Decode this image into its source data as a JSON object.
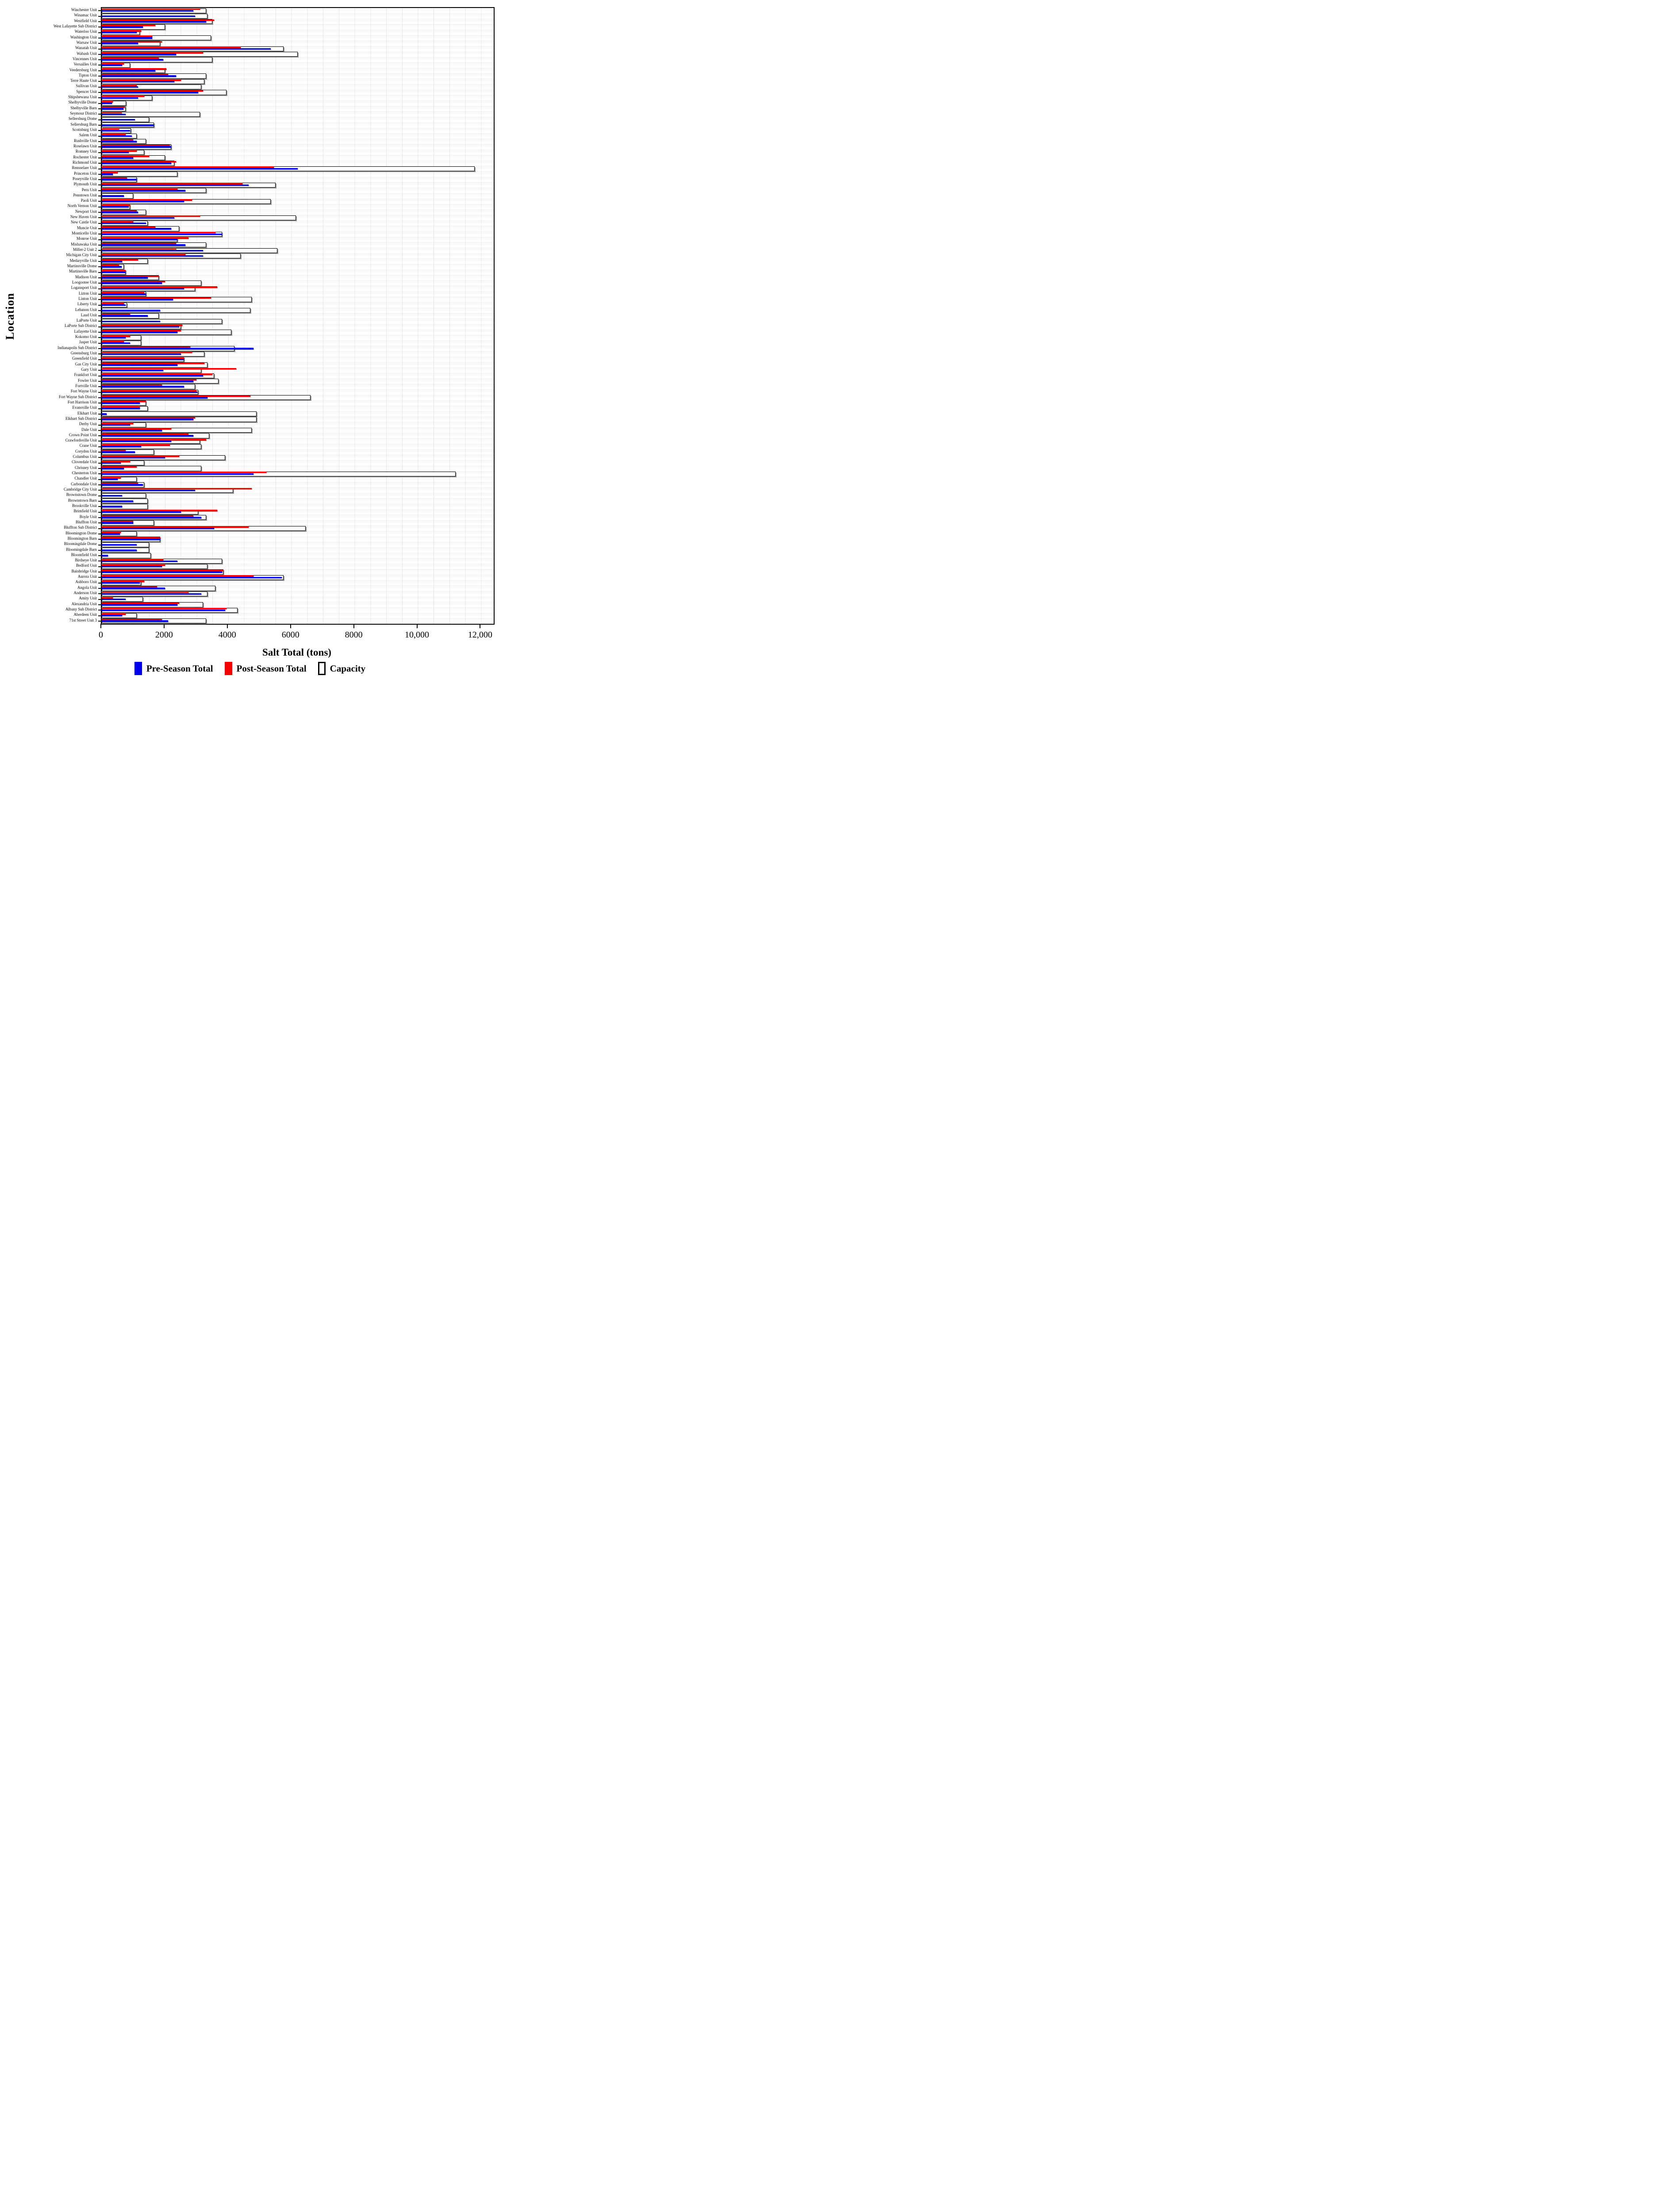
{
  "chart_data": {
    "type": "bar",
    "orientation": "horizontal",
    "title": "",
    "xlabel": "Salt Total (tons)",
    "ylabel": "Location",
    "xlim": [
      0,
      12400
    ],
    "grid": "minor vertical gridlines every 500 tons; legend at bottom",
    "xticks": {
      "values": [
        0,
        2000,
        4000,
        6000,
        8000,
        10000,
        12000
      ],
      "labels": [
        "0",
        "2000",
        "4000",
        "6000",
        "8000",
        "10,000",
        "12,000"
      ]
    },
    "legend": [
      {
        "name": "Pre-Season Total",
        "color": "#0000f0"
      },
      {
        "name": "Post-Season Total",
        "color": "#f80000"
      },
      {
        "name": "Capacity",
        "color": "#ffffff",
        "border": "#000000"
      }
    ],
    "categories": [
      "Winchester Unit",
      "Winamac Unit",
      "Westfield Unit",
      "West Lafayette Sub District",
      "Waterloo Unit",
      "Washington Unit",
      "Warsaw Unit",
      "Wanatah Unit",
      "Wabash Unit",
      "Vincennes Unit",
      "Versailles Unit",
      "Veedersburg Unit",
      "Tipton Unit",
      "Terre Haute Unit",
      "Sullivan Unit",
      "Spencer Unit",
      "Shipshewana Unit",
      "Shelbyville Dome",
      "Shelbyville Barn",
      "Seymour District",
      "Sellersburg Dome",
      "Sellersburg Barn",
      "Scottsburg Unit",
      "Salem Unit",
      "Rushville Unit",
      "Roselawn Unit",
      "Romney Unit",
      "Rochester Unit",
      "Richmond Unit",
      "Rensselaer Unit",
      "Princeton Unit",
      "Poseyville Unit",
      "Plymouth Unit",
      "Peru Unit",
      "Penntown Unit",
      "Paoli Unit",
      "North Vernon Unit",
      "Newport Unit",
      "New Haven Unit",
      "New Castle Unit",
      "Muncie Unit",
      "Monticello Unit",
      "Monroe Unit",
      "Mishawaka Unit",
      "Miller-2 Unit 2",
      "Michigan City Unit",
      "Medaryville Unit",
      "Martinsville Dome",
      "Martinsville Barn",
      "Madison Unit",
      "Loogootee Unit",
      "Logansport Unit",
      "Lizton Unit",
      "Linton Unit",
      "Liberty Unit",
      "Lebanon Unit",
      "Laud Unit",
      "LaPorte Unit",
      "LaPorte Sub District",
      "Lafayette Unit",
      "Kokomo Unit",
      "Jasper Unit",
      "Indianapolis Sub District",
      "Greensburg Unit",
      "Greenfield Unit",
      "Gas City Unit",
      "Gary Unit",
      "Frankfort Unit",
      "Fowler Unit",
      "Fortville Unit",
      "Fort Wayne Unit",
      "Fort Wayne Sub District",
      "Fort Harrison Unit",
      "Evansville Unit",
      "Elkhart Unit",
      "Elkhart Sub District",
      "Derby Unit",
      "Dale Unit",
      "Crown Point Unit",
      "Crawfordsville Unit",
      "Crane Unit",
      "Corydon Unit",
      "Columbus Unit",
      "Cloverdale Unit",
      "Chrisney Unit",
      "Chesterton Unit",
      "Chandler Unit",
      "Carbondale Unit",
      "Cambridge City Unit",
      "Brownstown Dome",
      "Brownstown Barn",
      "Brookville Unit",
      "Brimfield Unit",
      "Boyle Unit",
      "Bluffton Unit",
      "Bluffton Sub District",
      "Bloomington Dome",
      "Bloomington Barn",
      "Bloomingdale Dome",
      "Bloomingdale Barn",
      "Bloomfield Unit",
      "Birdseye Unit",
      "Bedford Unit",
      "Bainbridge Unit",
      "Aurora Unit",
      "Ashboro Unit",
      "Angola Unit",
      "Anderson Unit",
      "Amity Unit",
      "Alexandria Unit",
      "Albany Sub District",
      "Aberdeen Unit",
      "71st Street Unit 3"
    ],
    "series": [
      {
        "name": "Pre-Season Total",
        "color": "#0000f0",
        "values": [
          2900,
          2950,
          3300,
          1300,
          1100,
          1600,
          1150,
          5350,
          2350,
          1950,
          650,
          1700,
          2350,
          2300,
          1150,
          3050,
          1150,
          320,
          680,
          750,
          1050,
          1650,
          890,
          950,
          1100,
          2200,
          850,
          1000,
          2200,
          6200,
          350,
          1100,
          4650,
          2650,
          700,
          2600,
          850,
          1150,
          2300,
          1400,
          2200,
          3800,
          2400,
          2650,
          3200,
          3200,
          650,
          625,
          750,
          1450,
          1900,
          2600,
          1400,
          2250,
          750,
          1850,
          1450,
          1850,
          2450,
          2400,
          750,
          900,
          4800,
          2500,
          2600,
          2400,
          1950,
          3200,
          2900,
          2600,
          3030,
          3350,
          1200,
          1200,
          150,
          2900,
          900,
          1900,
          2900,
          2200,
          1250,
          1050,
          2000,
          600,
          700,
          4800,
          500,
          1300,
          2950,
          650,
          1000,
          650,
          2500,
          3150,
          1000,
          3550,
          580,
          1850,
          1100,
          1100,
          200,
          2400,
          1900,
          3800,
          5700,
          1200,
          2000,
          3150,
          750,
          2400,
          3900,
          650,
          2100
        ]
      },
      {
        "name": "Post-Season Total",
        "color": "#f80000",
        "values": [
          3100,
          0,
          3550,
          1700,
          1250,
          1600,
          1900,
          4400,
          3200,
          1800,
          700,
          2050,
          2100,
          2500,
          1100,
          3200,
          1350,
          350,
          725,
          625,
          0,
          0,
          550,
          750,
          1000,
          2150,
          1100,
          1500,
          2350,
          5450,
          500,
          800,
          4450,
          2400,
          0,
          2850,
          900,
          1100,
          3100,
          1000,
          1700,
          3600,
          2750,
          2350,
          2350,
          2650,
          1150,
          550,
          750,
          1800,
          2000,
          3650,
          1350,
          3450,
          700,
          0,
          900,
          0,
          2550,
          2500,
          900,
          700,
          2800,
          2850,
          2600,
          3250,
          4250,
          3500,
          3000,
          1900,
          3000,
          4700,
          1400,
          1200,
          0,
          2950,
          1000,
          2200,
          2750,
          3300,
          2150,
          750,
          2450,
          900,
          1100,
          5200,
          600,
          1150,
          4750,
          0,
          0,
          0,
          3650,
          2900,
          1000,
          4650,
          600,
          1850,
          0,
          0,
          0,
          1950,
          2000,
          3850,
          4800,
          1350,
          1750,
          2750,
          350,
          2450,
          3950,
          750,
          1900
        ]
      },
      {
        "name": "Capacity",
        "color": "#ffffff",
        "values": [
          3300,
          3350,
          3500,
          2000,
          1200,
          3450,
          1850,
          5750,
          6200,
          3500,
          900,
          2000,
          3300,
          3250,
          3150,
          3950,
          1600,
          775,
          750,
          3100,
          1500,
          1650,
          930,
          1100,
          1400,
          2200,
          1350,
          2000,
          2300,
          11800,
          2400,
          1100,
          5500,
          3300,
          1000,
          5350,
          900,
          1400,
          6150,
          1450,
          2450,
          3800,
          2400,
          3300,
          5550,
          4400,
          1450,
          700,
          750,
          1800,
          3150,
          2950,
          1400,
          4750,
          800,
          4700,
          1800,
          3800,
          2500,
          4100,
          1250,
          1250,
          4200,
          3250,
          2600,
          3350,
          3150,
          3550,
          3700,
          2950,
          3050,
          6600,
          1400,
          1450,
          4900,
          4900,
          1400,
          4750,
          3400,
          3100,
          3150,
          1650,
          3900,
          1350,
          3150,
          11200,
          1100,
          1350,
          4150,
          1400,
          1450,
          1450,
          3050,
          3300,
          1650,
          6450,
          1100,
          1850,
          1500,
          1500,
          1550,
          3800,
          3350,
          3850,
          5750,
          1250,
          3600,
          3350,
          1300,
          3200,
          4300,
          1100,
          3300
        ]
      }
    ]
  }
}
